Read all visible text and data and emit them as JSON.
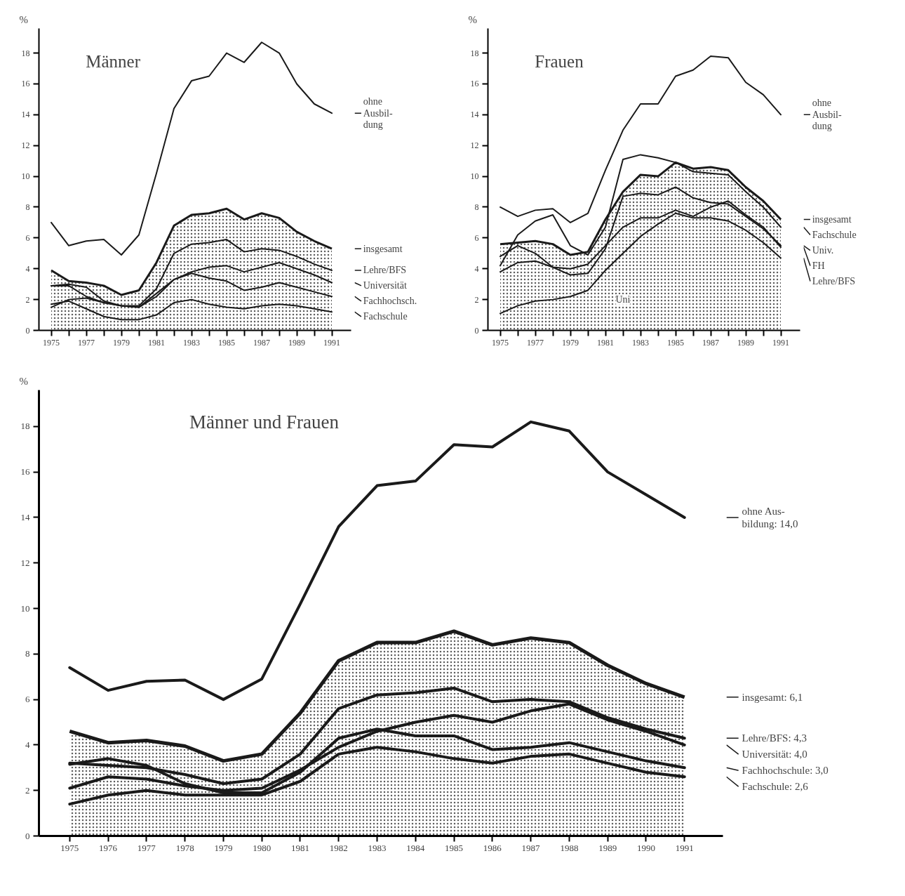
{
  "chart_data": [
    {
      "type": "line",
      "title": "Männer",
      "ylabel": "%",
      "legend": "right",
      "x": [
        1975,
        1976,
        1977,
        1978,
        1979,
        1980,
        1981,
        1982,
        1983,
        1984,
        1985,
        1986,
        1987,
        1988,
        1989,
        1990,
        1991
      ],
      "xlim": [
        1974.3,
        1992.1
      ],
      "ylim": [
        0,
        19.6
      ],
      "xticks": [
        1975,
        {
          "value": 1976,
          "label": null
        },
        1977,
        {
          "value": 1978,
          "label": null
        },
        1979,
        {
          "value": 1980,
          "label": null
        },
        1981,
        {
          "value": 1982,
          "label": null
        },
        1983,
        {
          "value": 1984,
          "label": null
        },
        1985,
        {
          "value": 1986,
          "label": null
        },
        1987,
        {
          "value": 1988,
          "label": null
        },
        1989,
        {
          "value": 1990,
          "label": null
        },
        1991
      ],
      "yticks": [
        0,
        2,
        4,
        6,
        8,
        10,
        12,
        14,
        16,
        18
      ],
      "series": [
        {
          "name": "ohne\nAusbil-\ndung",
          "color": "#1a1a1a",
          "values": [
            7.0,
            5.5,
            5.8,
            5.9,
            4.9,
            6.2,
            10.2,
            14.4,
            16.2,
            16.5,
            18.0,
            17.4,
            18.7,
            18.0,
            16.0,
            14.7,
            14.1
          ]
        },
        {
          "name": "insgesamt",
          "type": "area",
          "color": "#1a1a1a",
          "values": [
            3.9,
            3.2,
            3.1,
            2.9,
            2.3,
            2.6,
            4.4,
            6.8,
            7.5,
            7.6,
            7.9,
            7.2,
            7.6,
            7.3,
            6.4,
            5.8,
            5.3
          ]
        },
        {
          "name": "Lehre/BFS",
          "color": "#1a1a1a",
          "values": [
            2.9,
            2.9,
            2.2,
            1.8,
            1.6,
            1.6,
            2.7,
            5.0,
            5.6,
            5.7,
            5.9,
            5.1,
            5.3,
            5.2,
            4.8,
            4.3,
            3.9
          ]
        },
        {
          "name": "Universität",
          "color": "#1a1a1a",
          "values": [
            1.5,
            2.0,
            2.1,
            1.8,
            1.6,
            1.5,
            2.2,
            3.3,
            3.8,
            4.1,
            4.2,
            3.8,
            4.1,
            4.4,
            4.0,
            3.6,
            3.1
          ]
        },
        {
          "name": "Fachhochsch.",
          "color": "#1a1a1a",
          "values": [
            2.9,
            3.0,
            2.8,
            1.9,
            1.6,
            1.5,
            2.4,
            3.3,
            3.7,
            3.4,
            3.2,
            2.6,
            2.8,
            3.1,
            2.8,
            2.5,
            2.2
          ]
        },
        {
          "name": "Fachschule",
          "color": "#1a1a1a",
          "values": [
            1.7,
            1.9,
            1.4,
            0.9,
            0.7,
            0.7,
            1.0,
            1.8,
            2.0,
            1.7,
            1.5,
            1.4,
            1.6,
            1.7,
            1.6,
            1.4,
            1.2
          ]
        }
      ]
    },
    {
      "type": "line",
      "title": "Frauen",
      "ylabel": "%",
      "legend": "right",
      "x": [
        1975,
        1976,
        1977,
        1978,
        1979,
        1980,
        1981,
        1982,
        1983,
        1984,
        1985,
        1986,
        1987,
        1988,
        1989,
        1990,
        1991
      ],
      "xlim": [
        1974.3,
        1992.1
      ],
      "ylim": [
        0,
        19.6
      ],
      "xticks": [
        1975,
        {
          "value": 1976,
          "label": null
        },
        1977,
        {
          "value": 1978,
          "label": null
        },
        1979,
        {
          "value": 1980,
          "label": null
        },
        1981,
        {
          "value": 1982,
          "label": null
        },
        1983,
        {
          "value": 1984,
          "label": null
        },
        1985,
        {
          "value": 1986,
          "label": null
        },
        1987,
        {
          "value": 1988,
          "label": null
        },
        1989,
        {
          "value": 1990,
          "label": null
        },
        1991
      ],
      "yticks": [
        0,
        2,
        4,
        6,
        8,
        10,
        12,
        14,
        16,
        18
      ],
      "annotations": [
        {
          "text": "Uni",
          "x": 1982,
          "y": 2.0
        }
      ],
      "series": [
        {
          "name": "ohne\nAusbil-\ndung",
          "color": "#1a1a1a",
          "values": [
            8.0,
            7.4,
            7.8,
            7.9,
            7.0,
            7.6,
            10.4,
            13.0,
            14.7,
            14.7,
            16.5,
            16.9,
            17.8,
            17.7,
            16.1,
            15.3,
            14.0
          ]
        },
        {
          "name": "insgesamt",
          "type": "area",
          "color": "#1a1a1a",
          "values": [
            5.6,
            5.7,
            5.8,
            5.6,
            4.9,
            5.1,
            7.2,
            9.0,
            10.1,
            10.0,
            10.9,
            10.5,
            10.6,
            10.4,
            9.3,
            8.4,
            7.2
          ]
        },
        {
          "name": "Fachschule",
          "color": "#1a1a1a",
          "values": [
            4.2,
            6.2,
            7.1,
            7.5,
            5.5,
            4.9,
            6.7,
            11.1,
            11.4,
            11.2,
            10.9,
            10.3,
            10.2,
            10.1,
            9.0,
            8.0,
            6.7
          ]
        },
        {
          "name": "Univ.",
          "color": "#1a1a1a",
          "values": [
            4.8,
            5.5,
            5.0,
            4.1,
            3.6,
            3.7,
            5.3,
            8.7,
            8.9,
            8.8,
            9.3,
            8.6,
            8.3,
            8.2,
            7.4,
            6.6,
            5.5
          ]
        },
        {
          "name": "FH",
          "color": "#1a1a1a",
          "values": [
            3.8,
            4.4,
            4.5,
            4.1,
            4.0,
            4.3,
            5.5,
            6.7,
            7.3,
            7.3,
            7.8,
            7.4,
            8.0,
            8.4,
            7.5,
            6.7,
            5.4
          ]
        },
        {
          "name": "Lehre/BFS",
          "color": "#1a1a1a",
          "values": [
            1.1,
            1.6,
            1.9,
            2.0,
            2.2,
            2.6,
            3.9,
            5.0,
            6.1,
            6.9,
            7.6,
            7.3,
            7.3,
            7.1,
            6.5,
            5.7,
            4.7
          ]
        }
      ]
    },
    {
      "type": "line",
      "title": "Männer und Frauen",
      "ylabel": "%",
      "legend": "right",
      "x": [
        1975,
        1976,
        1977,
        1978,
        1979,
        1980,
        1981,
        1982,
        1983,
        1984,
        1985,
        1986,
        1987,
        1988,
        1989,
        1990,
        1991
      ],
      "xlim": [
        1974.2,
        1992.0
      ],
      "ylim": [
        0,
        19.6
      ],
      "xticks": [
        1975,
        1976,
        1977,
        1978,
        1979,
        1980,
        1981,
        1982,
        1983,
        1984,
        1985,
        1986,
        1987,
        1988,
        1989,
        1990,
        1991
      ],
      "yticks": [
        0,
        2,
        4,
        6,
        8,
        10,
        12,
        14,
        16,
        18
      ],
      "series": [
        {
          "name": "ohne Aus-\nbildung: 14,0",
          "color": "#1a1a1a",
          "values": [
            7.4,
            6.4,
            6.8,
            6.85,
            6.0,
            6.9,
            10.2,
            13.6,
            15.4,
            15.6,
            17.2,
            17.1,
            18.2,
            17.8,
            16.0,
            15.0,
            14.0
          ]
        },
        {
          "name": "insgesamt: 6,1",
          "type": "area",
          "color": "#1a1a1a",
          "values": [
            4.6,
            4.1,
            4.2,
            3.95,
            3.3,
            3.6,
            5.4,
            7.7,
            8.5,
            8.5,
            9.0,
            8.4,
            8.7,
            8.5,
            7.5,
            6.7,
            6.1
          ]
        },
        {
          "name": "Lehre/BFS: 4,3",
          "color": "#1a1a1a",
          "values": [
            3.2,
            3.1,
            3.0,
            2.7,
            2.3,
            2.5,
            3.6,
            5.6,
            6.2,
            6.3,
            6.5,
            5.9,
            6.0,
            5.9,
            5.2,
            4.7,
            4.3
          ]
        },
        {
          "name": "Universität: 4,0",
          "color": "#1a1a1a",
          "values": [
            2.1,
            2.6,
            2.5,
            2.2,
            2.0,
            2.1,
            2.9,
            3.9,
            4.6,
            5.0,
            5.3,
            5.0,
            5.5,
            5.8,
            5.1,
            4.6,
            4.0
          ]
        },
        {
          "name": "Fachhochschule: 3,0",
          "color": "#1a1a1a",
          "values": [
            3.15,
            3.4,
            3.1,
            2.3,
            1.9,
            1.9,
            2.8,
            4.3,
            4.7,
            4.4,
            4.4,
            3.8,
            3.9,
            4.1,
            3.7,
            3.3,
            3.0
          ]
        },
        {
          "name": "Fachschule: 2,6",
          "color": "#1a1a1a",
          "values": [
            1.4,
            1.8,
            2.0,
            1.8,
            1.8,
            1.8,
            2.4,
            3.6,
            3.9,
            3.7,
            3.4,
            3.2,
            3.5,
            3.6,
            3.2,
            2.8,
            2.6
          ]
        }
      ]
    }
  ]
}
